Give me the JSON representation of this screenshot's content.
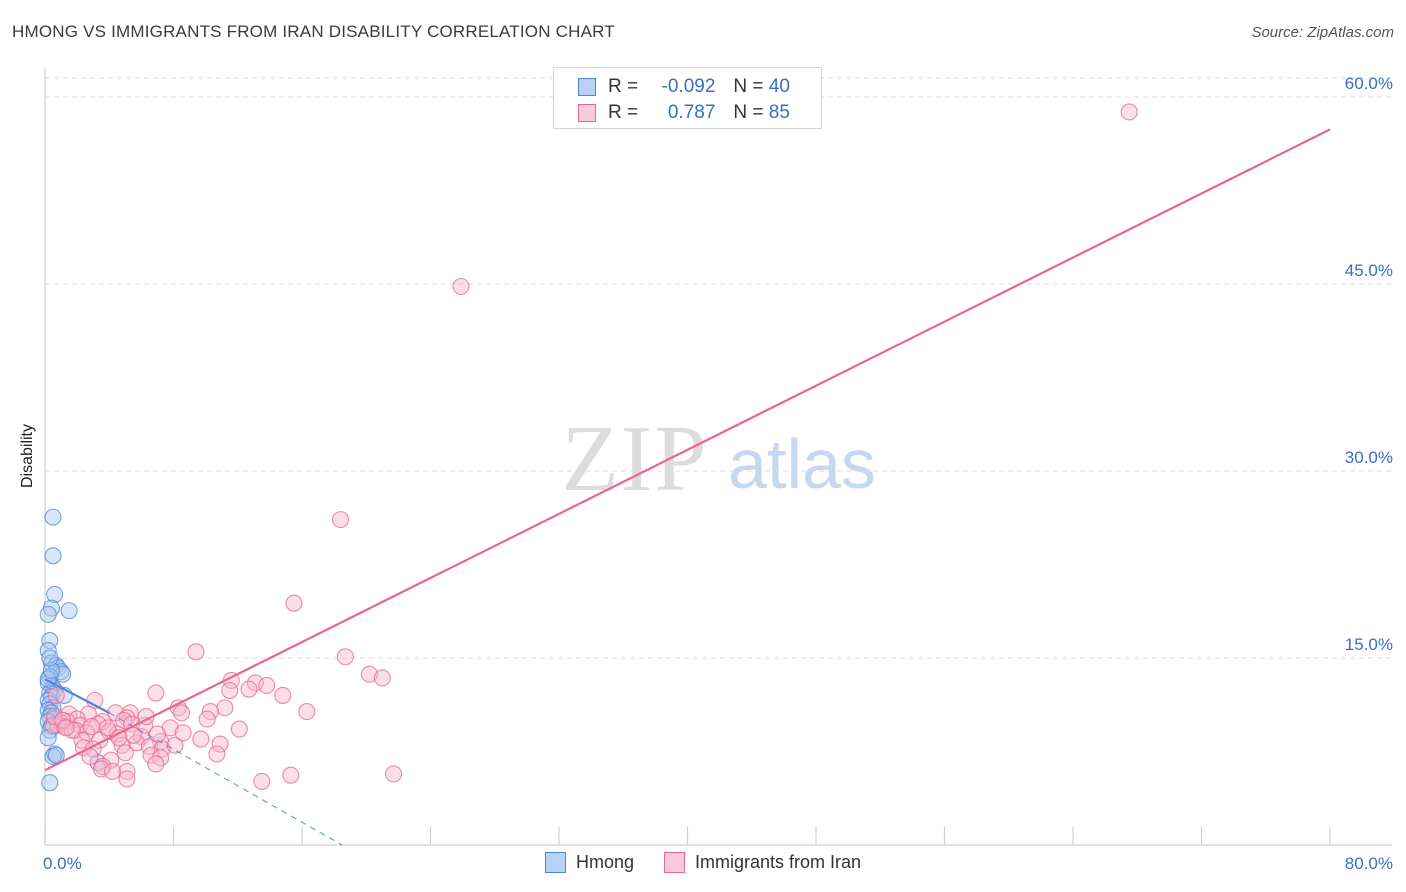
{
  "header": {
    "title": "HMONG VS IMMIGRANTS FROM IRAN DISABILITY CORRELATION CHART",
    "source": "Source: ZipAtlas.com"
  },
  "watermark": {
    "zip": "ZIP",
    "atlas": "atlas"
  },
  "colors": {
    "hmong": "#4a86d9",
    "hmong_fill": "#aac8f0",
    "iran": "#e8668f",
    "iran_fill": "#f5b8cb",
    "tick_label": "#3a6ec2",
    "grid": "#dddddd"
  },
  "legend_top": {
    "rows": [
      {
        "r_label": "R =",
        "r_value": "-0.092",
        "n_label": "N =",
        "n_value": "40"
      },
      {
        "r_label": "R =",
        "r_value": "0.787",
        "n_label": "N =",
        "n_value": "85"
      }
    ]
  },
  "legend_bottom": {
    "items": [
      {
        "label": "Hmong"
      },
      {
        "label": "Immigrants from Iran"
      }
    ]
  },
  "chart_data": {
    "type": "scatter",
    "title": "HMONG VS IMMIGRANTS FROM IRAN DISABILITY CORRELATION CHART",
    "xlabel": "",
    "ylabel": "Disability",
    "xlim": [
      0,
      80
    ],
    "ylim": [
      0,
      60
    ],
    "x_tick_labels": [
      "0.0%",
      "80.0%"
    ],
    "y_ticks": [
      15,
      30,
      45,
      60
    ],
    "y_tick_labels": [
      "15.0%",
      "30.0%",
      "45.0%",
      "60.0%"
    ],
    "grid": true,
    "legend_position": "bottom",
    "series": [
      {
        "name": "Hmong",
        "color": "#4a86d9",
        "R": -0.092,
        "N": 40,
        "points": [
          [
            0.5,
            26.3
          ],
          [
            0.5,
            23.2
          ],
          [
            0.6,
            20.1
          ],
          [
            0.4,
            19.0
          ],
          [
            1.5,
            18.8
          ],
          [
            0.2,
            18.5
          ],
          [
            0.3,
            16.4
          ],
          [
            0.2,
            15.6
          ],
          [
            0.4,
            14.6
          ],
          [
            0.7,
            14.4
          ],
          [
            0.8,
            14.2
          ],
          [
            1.0,
            13.9
          ],
          [
            1.1,
            13.7
          ],
          [
            0.3,
            13.5
          ],
          [
            0.2,
            13.0
          ],
          [
            0.5,
            12.6
          ],
          [
            0.6,
            12.4
          ],
          [
            0.3,
            12.2
          ],
          [
            0.4,
            11.9
          ],
          [
            0.2,
            11.6
          ],
          [
            0.3,
            11.3
          ],
          [
            0.5,
            11.0
          ],
          [
            0.2,
            10.8
          ],
          [
            0.4,
            10.6
          ],
          [
            0.3,
            10.3
          ],
          [
            0.6,
            10.1
          ],
          [
            0.2,
            9.9
          ],
          [
            0.8,
            9.7
          ],
          [
            0.4,
            9.5
          ],
          [
            0.3,
            9.2
          ],
          [
            0.2,
            8.6
          ],
          [
            0.6,
            7.3
          ],
          [
            0.5,
            7.1
          ],
          [
            0.7,
            7.2
          ],
          [
            3.3,
            6.6
          ],
          [
            0.3,
            5.0
          ],
          [
            0.2,
            13.3
          ],
          [
            0.4,
            14.0
          ],
          [
            1.2,
            12.0
          ],
          [
            0.3,
            15.0
          ]
        ],
        "trend": {
          "x0": 0,
          "y0": 13.3,
          "x1": 4,
          "y1": 10.6
        },
        "trend_ext": {
          "x0": 4,
          "y0": 10.6,
          "x1": 18.5,
          "y1": 0
        }
      },
      {
        "name": "Immigrants from Iran",
        "color": "#e8668f",
        "R": 0.787,
        "N": 85,
        "points": [
          [
            67.5,
            58.8
          ],
          [
            25.9,
            44.8
          ],
          [
            18.4,
            26.1
          ],
          [
            15.5,
            19.4
          ],
          [
            9.4,
            15.5
          ],
          [
            18.7,
            15.1
          ],
          [
            20.2,
            13.7
          ],
          [
            21.0,
            13.4
          ],
          [
            11.6,
            13.2
          ],
          [
            13.1,
            13.0
          ],
          [
            13.8,
            12.8
          ],
          [
            11.5,
            12.4
          ],
          [
            12.7,
            12.5
          ],
          [
            6.9,
            12.2
          ],
          [
            14.8,
            12.0
          ],
          [
            0.7,
            12.0
          ],
          [
            3.1,
            11.6
          ],
          [
            8.3,
            11.0
          ],
          [
            11.2,
            11.0
          ],
          [
            16.3,
            10.7
          ],
          [
            8.5,
            10.6
          ],
          [
            10.3,
            10.7
          ],
          [
            5.3,
            10.6
          ],
          [
            4.4,
            10.6
          ],
          [
            2.7,
            10.5
          ],
          [
            1.5,
            10.5
          ],
          [
            5.1,
            10.2
          ],
          [
            4.9,
            10.0
          ],
          [
            2.0,
            10.1
          ],
          [
            10.1,
            10.1
          ],
          [
            1.4,
            9.9
          ],
          [
            3.6,
            9.9
          ],
          [
            5.4,
            9.7
          ],
          [
            2.2,
            9.6
          ],
          [
            3.3,
            9.7
          ],
          [
            1.0,
            9.8
          ],
          [
            0.8,
            9.6
          ],
          [
            1.2,
            9.5
          ],
          [
            0.5,
            9.6
          ],
          [
            7.8,
            9.4
          ],
          [
            12.1,
            9.3
          ],
          [
            4.0,
            9.1
          ],
          [
            1.9,
            9.2
          ],
          [
            2.6,
            9.0
          ],
          [
            4.5,
            8.9
          ],
          [
            6.0,
            8.7
          ],
          [
            9.7,
            8.5
          ],
          [
            7.2,
            8.3
          ],
          [
            3.4,
            8.4
          ],
          [
            2.3,
            8.4
          ],
          [
            5.7,
            8.2
          ],
          [
            4.8,
            8.0
          ],
          [
            6.5,
            7.9
          ],
          [
            2.4,
            7.8
          ],
          [
            3.0,
            7.7
          ],
          [
            7.3,
            7.7
          ],
          [
            10.9,
            8.1
          ],
          [
            8.1,
            8.0
          ],
          [
            5.0,
            7.4
          ],
          [
            6.6,
            7.2
          ],
          [
            10.7,
            7.3
          ],
          [
            7.2,
            7.0
          ],
          [
            2.8,
            7.1
          ],
          [
            4.1,
            6.8
          ],
          [
            3.6,
            6.3
          ],
          [
            6.9,
            6.5
          ],
          [
            5.1,
            5.9
          ],
          [
            3.5,
            6.1
          ],
          [
            4.2,
            5.9
          ],
          [
            5.1,
            5.3
          ],
          [
            13.5,
            5.1
          ],
          [
            15.3,
            5.6
          ],
          [
            21.7,
            5.7
          ],
          [
            1.7,
            9.2
          ],
          [
            0.6,
            10.3
          ],
          [
            1.1,
            10.0
          ],
          [
            3.9,
            9.4
          ],
          [
            6.2,
            9.6
          ],
          [
            2.9,
            9.5
          ],
          [
            5.5,
            8.8
          ],
          [
            8.6,
            9.0
          ],
          [
            1.3,
            9.4
          ],
          [
            4.6,
            8.6
          ],
          [
            6.3,
            10.3
          ],
          [
            7.0,
            8.9
          ]
        ],
        "trend": {
          "x0": 0,
          "y0": 6.0,
          "x1": 80,
          "y1": 57.4
        }
      }
    ]
  }
}
